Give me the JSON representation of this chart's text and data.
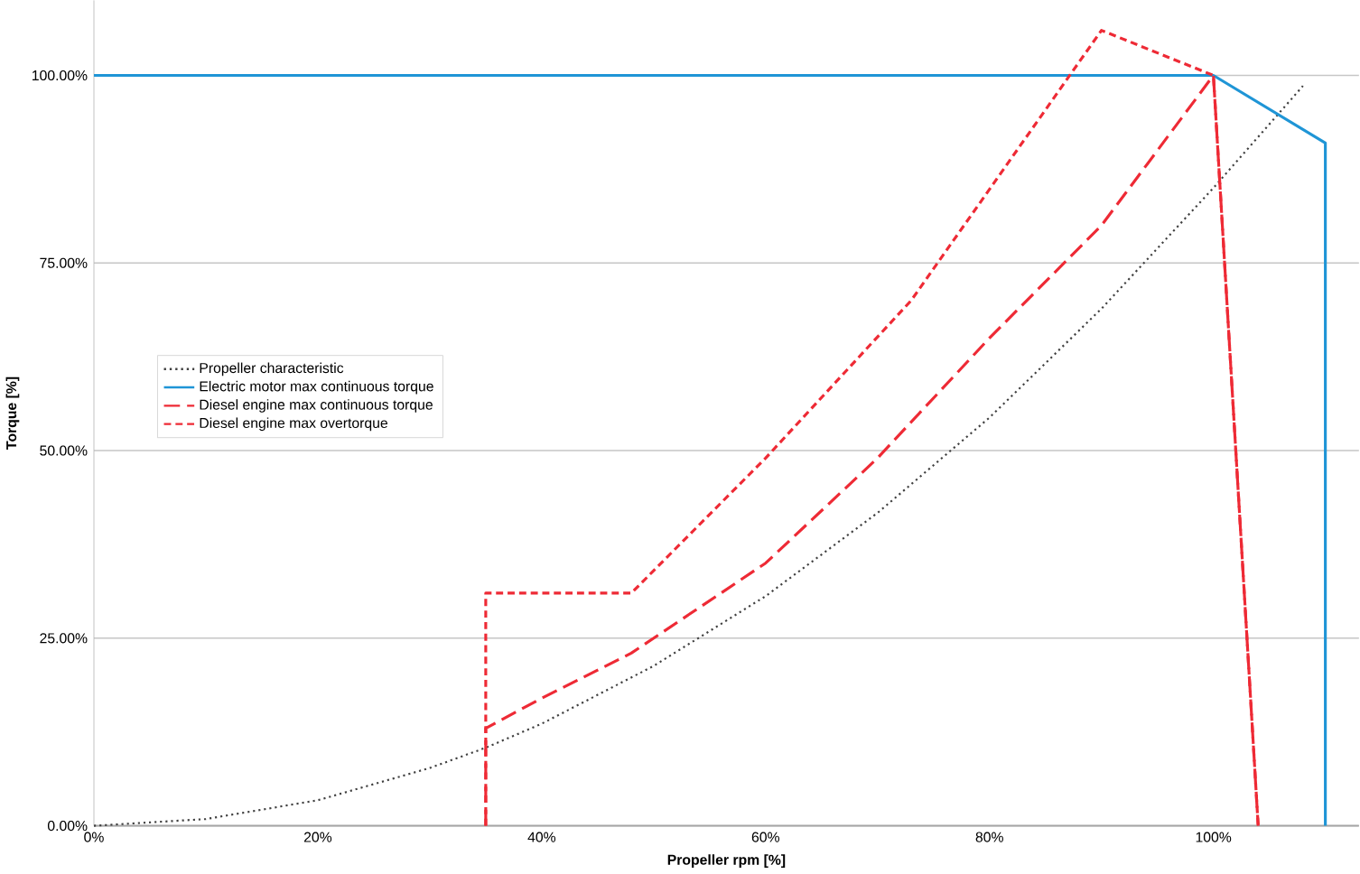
{
  "chart_data": {
    "type": "line",
    "xlabel": "Propeller rpm [%]",
    "ylabel": "Torque [%]",
    "xlim": [
      0,
      113
    ],
    "ylim": [
      0,
      110
    ],
    "xticks": [
      {
        "value": 0,
        "label": "0%"
      },
      {
        "value": 20,
        "label": "20%"
      },
      {
        "value": 40,
        "label": "40%"
      },
      {
        "value": 60,
        "label": "60%"
      },
      {
        "value": 80,
        "label": "80%"
      },
      {
        "value": 100,
        "label": "100%"
      }
    ],
    "yticks": [
      {
        "value": 0,
        "label": "0.00%"
      },
      {
        "value": 25,
        "label": "25.00%"
      },
      {
        "value": 50,
        "label": "50.00%"
      },
      {
        "value": 75,
        "label": "75.00%"
      },
      {
        "value": 100,
        "label": "100.00%"
      }
    ],
    "grid": "y",
    "legend": "left",
    "marker": "none",
    "series": [
      {
        "name": "Propeller characteristic",
        "color": "#404040",
        "line_style": "dotted",
        "x": [
          0,
          10,
          20,
          30,
          35,
          40,
          50,
          60,
          70,
          80,
          90,
          100,
          108
        ],
        "values": [
          0,
          0.9,
          3.4,
          7.7,
          10.4,
          13.6,
          21.3,
          30.6,
          41.7,
          54.4,
          68.9,
          85,
          98.6
        ]
      },
      {
        "name": "Electric motor max continuous torque",
        "color": "#1f95d6",
        "line_style": "solid",
        "x": [
          0,
          100,
          110,
          110
        ],
        "values": [
          100,
          100,
          91,
          0
        ]
      },
      {
        "name": "Diesel engine max continuous torque",
        "color": "#ee2a35",
        "line_style": "longdash",
        "x": [
          35,
          35,
          40,
          48,
          60,
          70,
          80,
          90,
          100,
          104
        ],
        "values": [
          0,
          13,
          17,
          23,
          35,
          49,
          65,
          80,
          100,
          0
        ]
      },
      {
        "name": "Diesel engine max overtorque",
        "color": "#ee2a35",
        "line_style": "dashed",
        "x": [
          35,
          35,
          48,
          60,
          73,
          90,
          100,
          104
        ],
        "values": [
          0,
          31,
          31,
          49,
          70,
          106,
          100,
          0
        ]
      }
    ]
  }
}
